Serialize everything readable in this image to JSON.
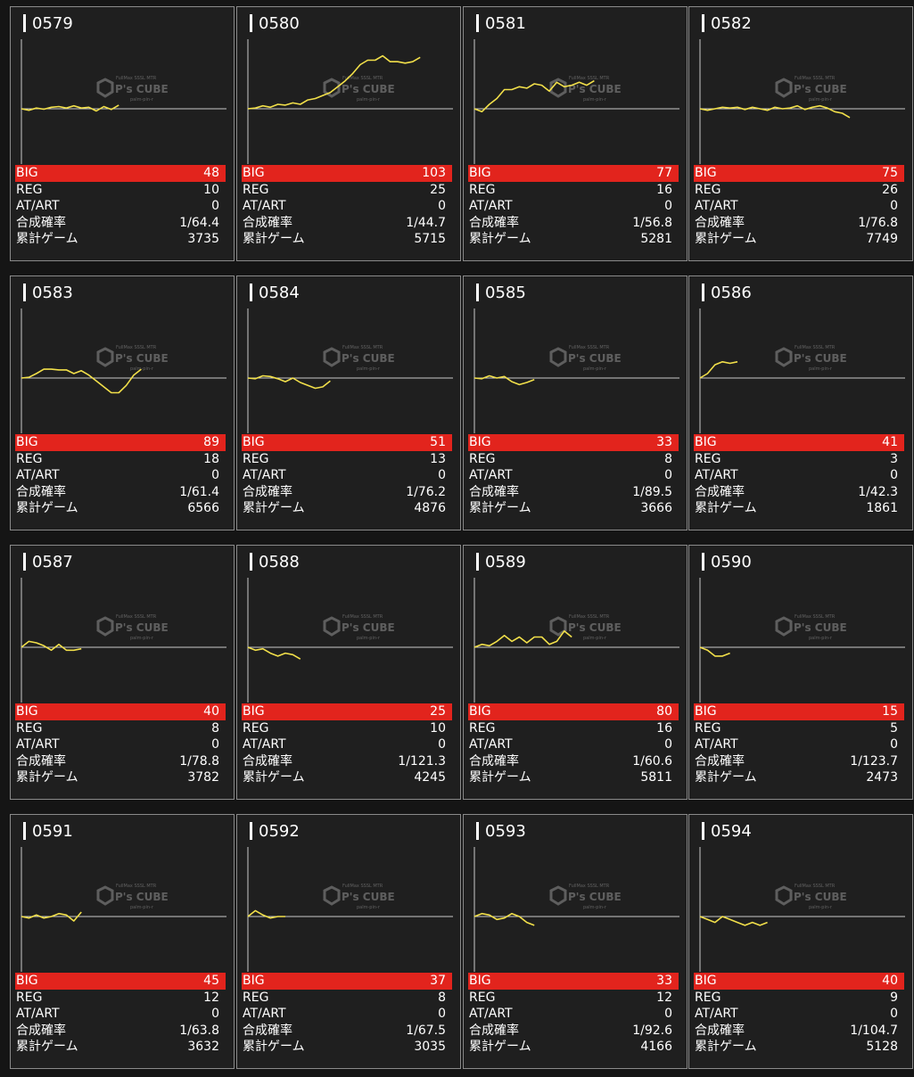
{
  "watermark": {
    "brand": "P's CUBE",
    "top_text": "FullMax SSSL MTR",
    "bottom_text": "palm-pin-r"
  },
  "labels": {
    "big": "BIG",
    "reg": "REG",
    "atart": "AT/ART",
    "prob": "合成確率",
    "games": "累計ゲーム"
  },
  "colors": {
    "line": "#f2e04a",
    "big_row": "#e2241d",
    "baseline": "#c9c9c9",
    "card_bg": "#1f1f1f"
  },
  "machines": [
    {
      "id": "0579",
      "big": "48",
      "reg": "10",
      "atart": "0",
      "prob": "1/64.4",
      "games": "3735",
      "graph": [
        0,
        -10,
        5,
        -3,
        10,
        15,
        5,
        20,
        5,
        10,
        -15,
        15,
        -5,
        25
      ]
    },
    {
      "id": "0580",
      "big": "103",
      "reg": "25",
      "atart": "0",
      "prob": "1/44.7",
      "games": "5715",
      "graph": [
        0,
        5,
        20,
        10,
        30,
        25,
        40,
        30,
        60,
        70,
        90,
        110,
        150,
        190,
        240,
        300,
        330,
        330,
        360,
        320,
        320,
        310,
        320,
        350
      ]
    },
    {
      "id": "0581",
      "big": "77",
      "reg": "16",
      "atart": "0",
      "prob": "1/56.8",
      "games": "5281",
      "graph": [
        0,
        -20,
        30,
        70,
        130,
        130,
        150,
        140,
        170,
        160,
        120,
        180,
        150,
        160,
        180,
        160,
        190
      ]
    },
    {
      "id": "0582",
      "big": "75",
      "reg": "26",
      "atart": "0",
      "prob": "1/76.8",
      "games": "7749",
      "graph": [
        0,
        -10,
        0,
        10,
        5,
        10,
        -5,
        10,
        0,
        -10,
        10,
        0,
        5,
        20,
        -5,
        10,
        20,
        5,
        -20,
        -30,
        -60
      ]
    },
    {
      "id": "0583",
      "big": "89",
      "reg": "18",
      "atart": "0",
      "prob": "1/61.4",
      "games": "6566",
      "graph": [
        0,
        5,
        30,
        60,
        60,
        55,
        55,
        30,
        50,
        20,
        -20,
        -60,
        -100,
        -100,
        -50,
        20,
        60
      ]
    },
    {
      "id": "0584",
      "big": "51",
      "reg": "13",
      "atart": "0",
      "prob": "1/76.2",
      "games": "4876",
      "graph": [
        0,
        -5,
        15,
        10,
        -5,
        -25,
        0,
        -30,
        -50,
        -70,
        -60,
        -20
      ]
    },
    {
      "id": "0585",
      "big": "33",
      "reg": "8",
      "atart": "0",
      "prob": "1/89.5",
      "games": "3666",
      "graph": [
        0,
        -5,
        15,
        0,
        10,
        -25,
        -45,
        -30,
        -10
      ]
    },
    {
      "id": "0586",
      "big": "41",
      "reg": "3",
      "atart": "0",
      "prob": "1/42.3",
      "games": "1861",
      "graph": [
        0,
        30,
        90,
        110,
        100,
        110
      ]
    },
    {
      "id": "0587",
      "big": "40",
      "reg": "8",
      "atart": "0",
      "prob": "1/78.8",
      "games": "3782",
      "graph": [
        0,
        40,
        30,
        10,
        -20,
        20,
        -20,
        -20,
        -10
      ]
    },
    {
      "id": "0588",
      "big": "25",
      "reg": "10",
      "atart": "0",
      "prob": "1/121.3",
      "games": "4245",
      "graph": [
        0,
        -20,
        -10,
        -40,
        -60,
        -40,
        -50,
        -80
      ]
    },
    {
      "id": "0589",
      "big": "80",
      "reg": "16",
      "atart": "0",
      "prob": "1/60.6",
      "games": "5811",
      "graph": [
        0,
        20,
        10,
        40,
        80,
        40,
        70,
        30,
        70,
        70,
        20,
        40,
        110,
        70
      ]
    },
    {
      "id": "0590",
      "big": "15",
      "reg": "5",
      "atart": "0",
      "prob": "1/123.7",
      "games": "2473",
      "graph": [
        0,
        -20,
        -60,
        -60,
        -40
      ]
    },
    {
      "id": "0591",
      "big": "45",
      "reg": "12",
      "atart": "0",
      "prob": "1/63.8",
      "games": "3632",
      "graph": [
        0,
        -10,
        10,
        -10,
        0,
        20,
        10,
        -30,
        30
      ]
    },
    {
      "id": "0592",
      "big": "37",
      "reg": "8",
      "atart": "0",
      "prob": "1/67.5",
      "games": "3035",
      "graph": [
        0,
        40,
        10,
        -10,
        0,
        0
      ]
    },
    {
      "id": "0593",
      "big": "33",
      "reg": "12",
      "atart": "0",
      "prob": "1/92.6",
      "games": "4166",
      "graph": [
        0,
        20,
        10,
        -20,
        -10,
        20,
        0,
        -40,
        -60
      ]
    },
    {
      "id": "0594",
      "big": "40",
      "reg": "9",
      "atart": "0",
      "prob": "1/104.7",
      "games": "5128",
      "graph": [
        0,
        -20,
        -40,
        0,
        -20,
        -40,
        -60,
        -40,
        -60,
        -40
      ]
    }
  ]
}
